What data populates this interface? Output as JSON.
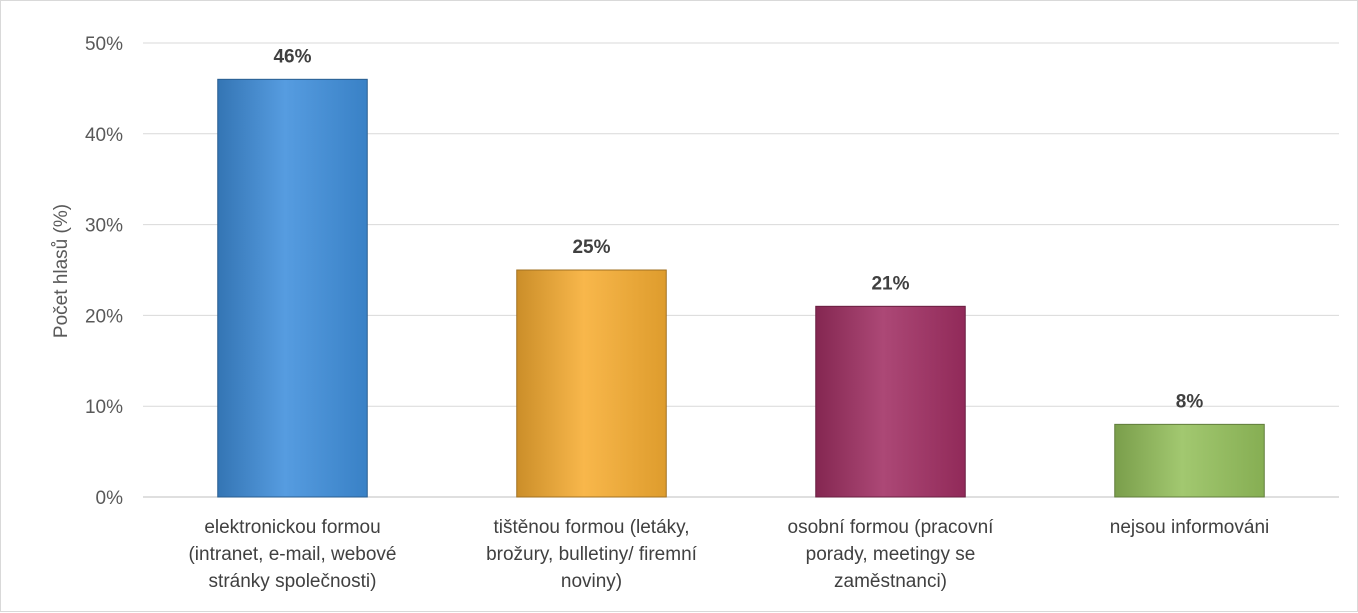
{
  "chart_data": {
    "type": "bar",
    "categories": [
      [
        "elektronickou formou",
        "(intranet, e-mail, webové",
        "stránky společnosti)"
      ],
      [
        "tištěnou formou (letáky,",
        "brožury, bulletiny/ firemní",
        "noviny)"
      ],
      [
        "osobní formou (pracovní",
        "porady, meetingy se",
        "zaměstnanci)"
      ],
      [
        "nejsou informováni"
      ]
    ],
    "values": [
      46,
      25,
      21,
      8
    ],
    "data_labels": [
      "46%",
      "25%",
      "21%",
      "8%"
    ],
    "colors": [
      "#3f8fdc",
      "#f7ad32",
      "#a12f63",
      "#95c15c"
    ],
    "ylabel": "Počet hlasů (%)",
    "ylim": [
      0,
      50
    ],
    "yticks": [
      0,
      10,
      20,
      30,
      40,
      50
    ],
    "ytick_labels": [
      "0%",
      "10%",
      "20%",
      "30%",
      "40%",
      "50%"
    ],
    "grid": true,
    "legend": "none"
  }
}
